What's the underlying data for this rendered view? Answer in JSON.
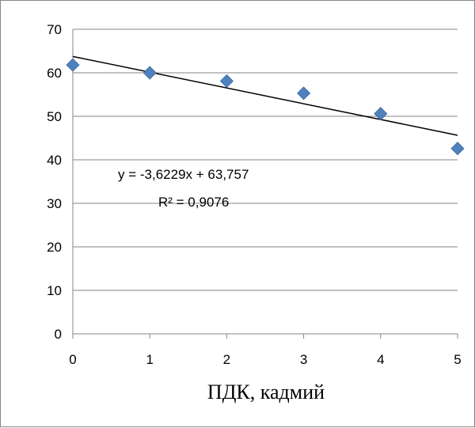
{
  "chart_data": {
    "type": "scatter",
    "title": "",
    "xlabel": "ПДК, кадмий",
    "ylabel": "",
    "xlim": [
      0,
      5
    ],
    "ylim": [
      0,
      70
    ],
    "x_ticks": [
      "0",
      "1",
      "2",
      "3",
      "4",
      "5"
    ],
    "y_ticks": [
      "0",
      "10",
      "20",
      "30",
      "40",
      "50",
      "60",
      "70"
    ],
    "grid": "horizontal major gridlines",
    "legend": "none",
    "series": [
      {
        "x": [
          0,
          1,
          2,
          3,
          4,
          5
        ],
        "y": [
          61.8,
          60.0,
          58.1,
          55.3,
          50.6,
          42.6
        ],
        "marker": "diamond",
        "color": "#4F81BD"
      }
    ],
    "trendline": {
      "type": "linear",
      "slope": -3.6229,
      "intercept": 63.757,
      "color": "#000000"
    },
    "annotations": {
      "equation": "y = -3,6229x + 63,757",
      "r_squared": "R² = 0,9076"
    }
  }
}
